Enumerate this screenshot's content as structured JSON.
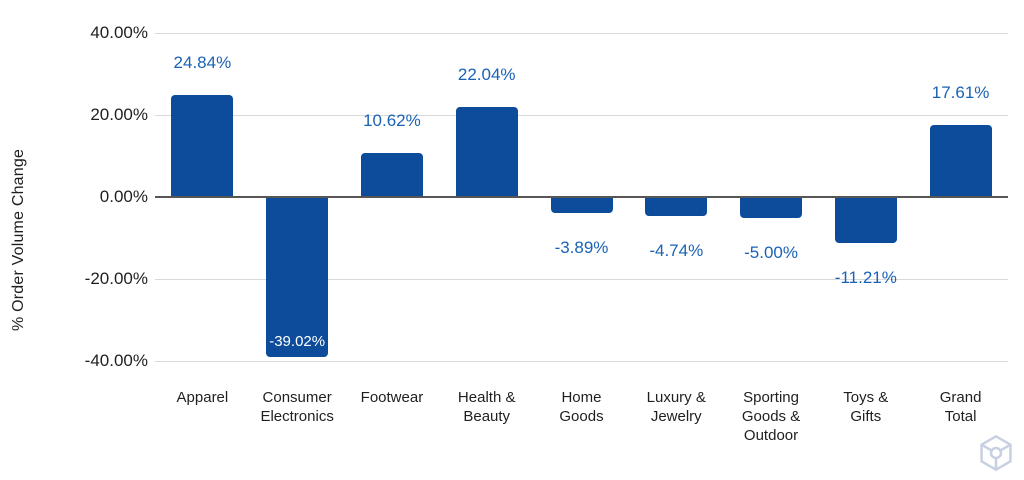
{
  "chart_data": {
    "type": "bar",
    "title": "",
    "xlabel": "",
    "ylabel": "% Order Volume Change",
    "categories": [
      "Apparel",
      "Consumer Electronics",
      "Footwear",
      "Health & Beauty",
      "Home Goods",
      "Luxury & Jewelry",
      "Sporting Goods & Outdoor",
      "Toys & Gifts",
      "Grand Total"
    ],
    "values": [
      24.84,
      -39.02,
      10.62,
      22.04,
      -3.89,
      -4.74,
      -5.0,
      -11.21,
      17.61
    ],
    "value_labels": [
      "24.84%",
      "-39.02%",
      "10.62%",
      "22.04%",
      "-3.89%",
      "-4.74%",
      "-5.00%",
      "-11.21%",
      "17.61%"
    ],
    "label_placements": [
      "above",
      "inside",
      "above",
      "above",
      "below",
      "below",
      "below",
      "below",
      "above"
    ],
    "y_ticks": [
      {
        "label": "40.00%",
        "value": 40
      },
      {
        "label": "20.00%",
        "value": 20
      },
      {
        "label": "0.00%",
        "value": 0
      },
      {
        "label": "-20.00%",
        "value": -20
      },
      {
        "label": "-40.00%",
        "value": -40
      }
    ],
    "ylim": [
      -40,
      40
    ],
    "grid": true,
    "legend": "none",
    "colors": {
      "bar": "#0d4c9b",
      "value_label": "#1a62b5",
      "inside_label": "#ffffff",
      "axis_text": "#1f1f1f",
      "gridline": "#d9d9d9",
      "zero_line": "#565656",
      "watermark": "#c8d0e2"
    }
  },
  "watermark": {
    "icon": "cube-hexagon-icon"
  }
}
